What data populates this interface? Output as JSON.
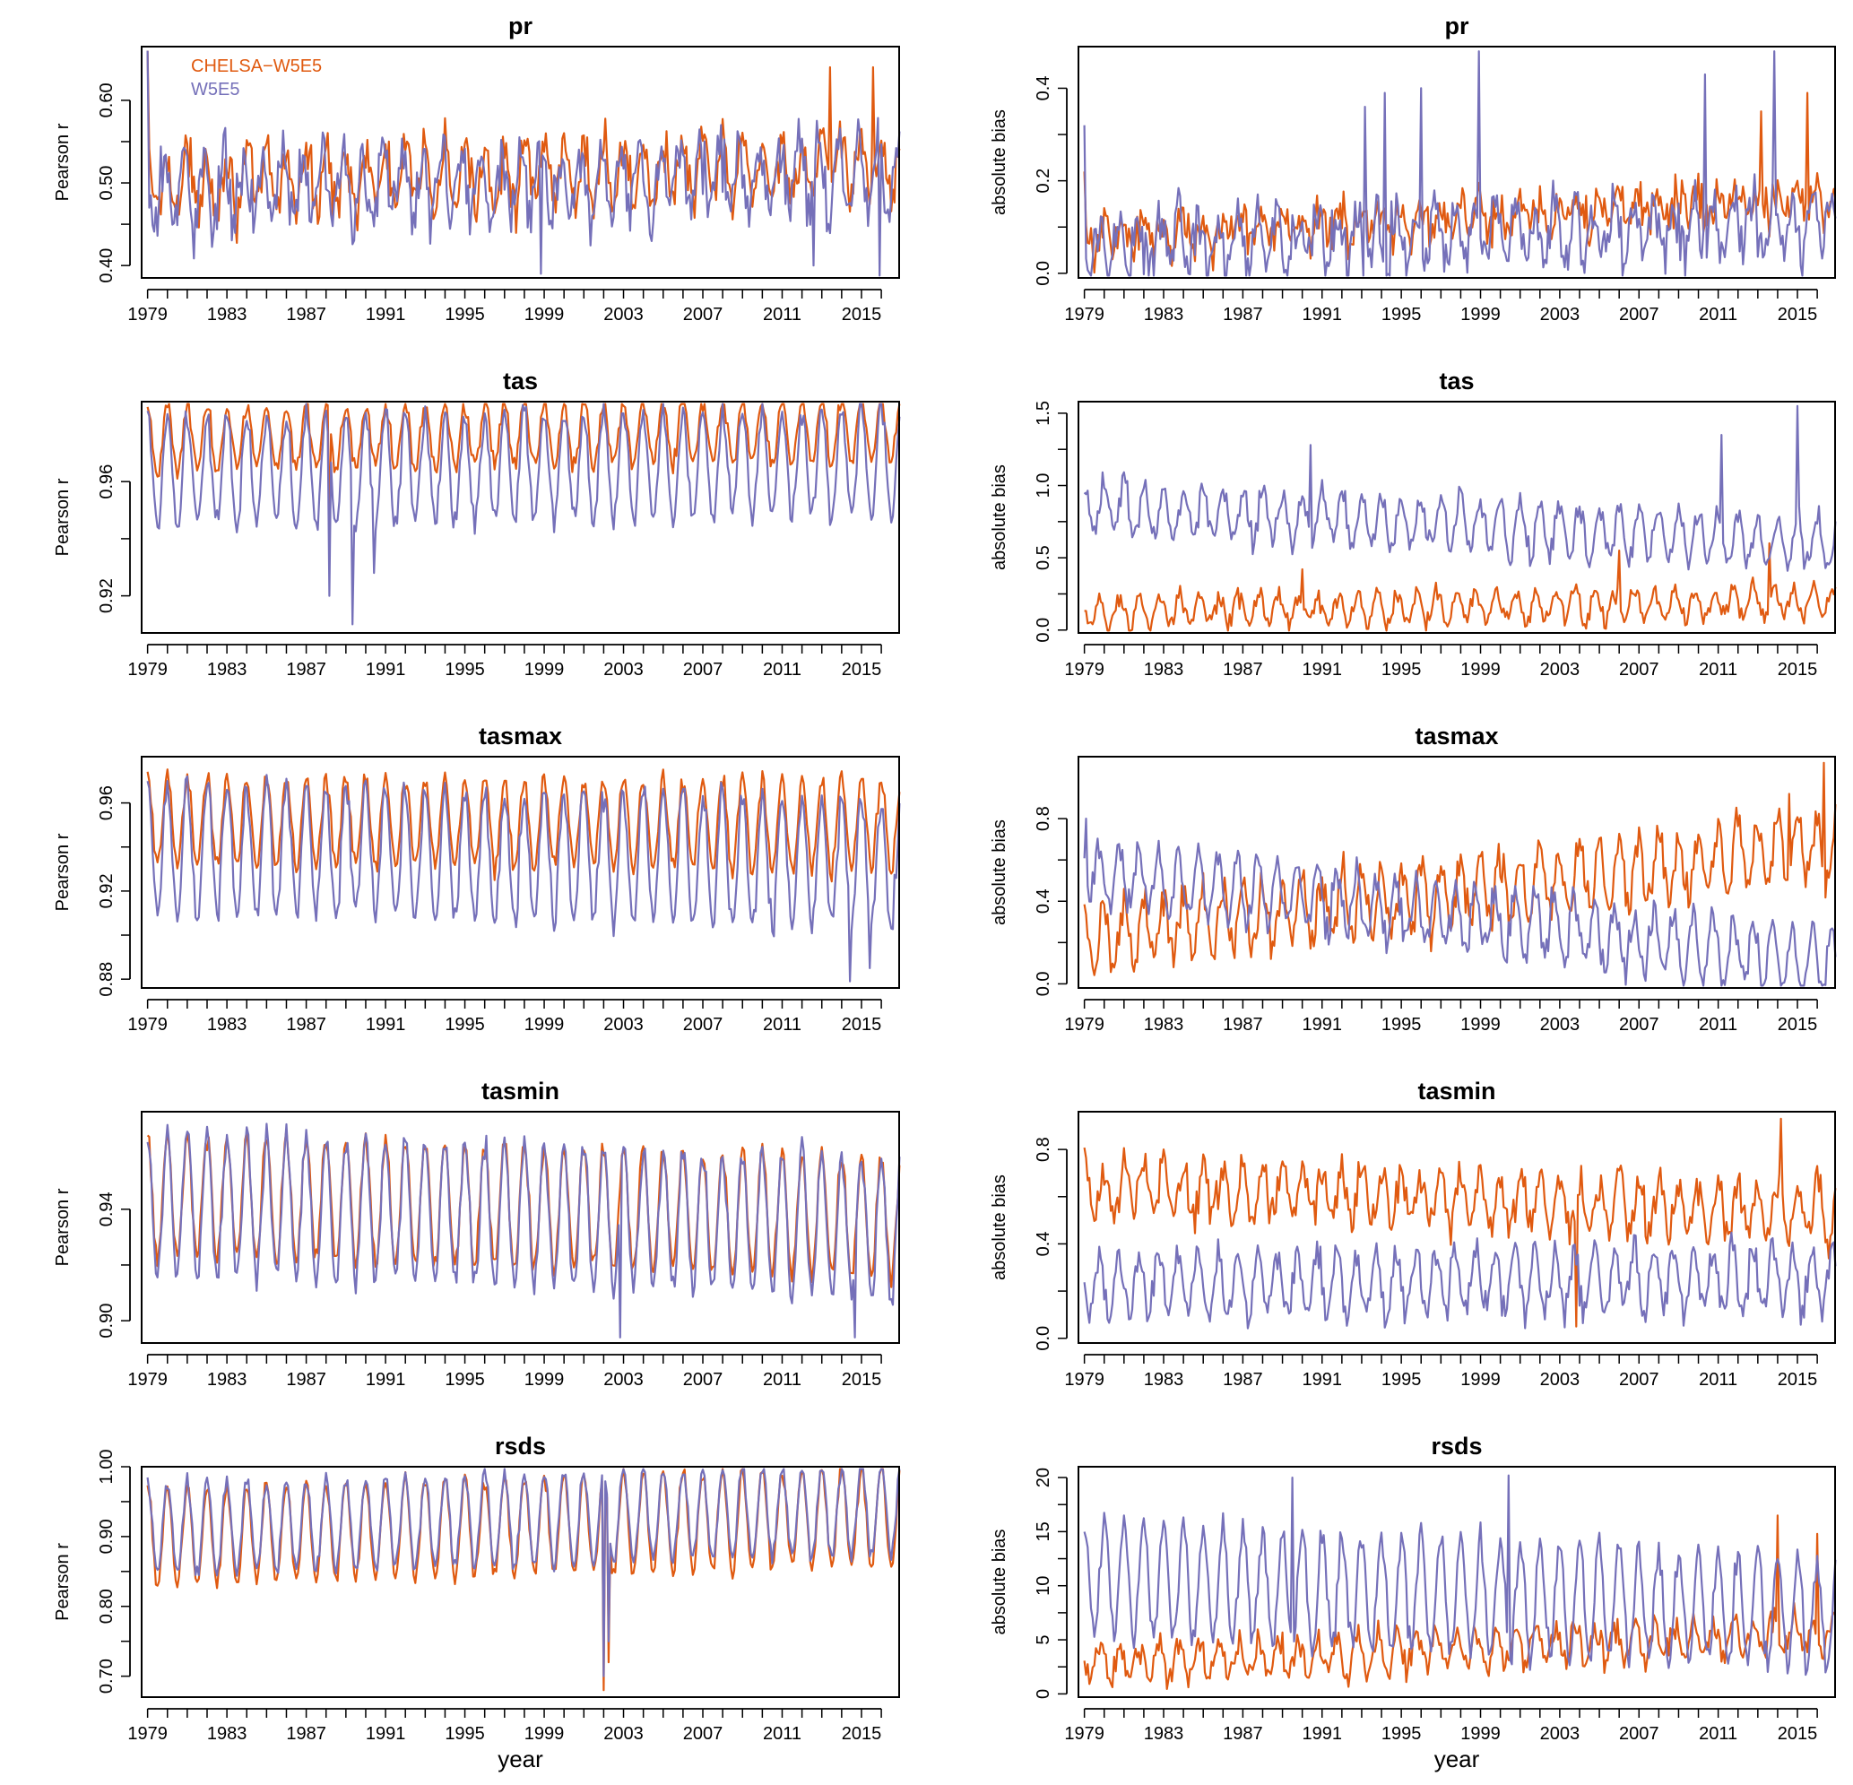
{
  "colors": {
    "chelsa": "#E05A10",
    "w5e5": "#7570B9",
    "axis": "#000000"
  },
  "legend": {
    "items": [
      {
        "label": "CHELSA−W5E5",
        "series": "chelsa"
      },
      {
        "label": "W5E5",
        "series": "w5e5"
      }
    ]
  },
  "xlabel": "year",
  "x_ticks": [
    "1979",
    "1983",
    "1987",
    "1991",
    "1995",
    "1999",
    "2003",
    "2007",
    "2011",
    "2015"
  ],
  "chart_data": [
    {
      "type": "line",
      "variable": "pr",
      "title": "pr",
      "ylabel": "Pearson r",
      "yticks": [
        "0.40",
        "0.50",
        "0.60"
      ],
      "ylim": [
        0.385,
        0.665
      ],
      "xlim": [
        1978.7,
        2016.9
      ],
      "series": [
        {
          "name": "CHELSA-W5E5",
          "color_key": "chelsa",
          "base": 0.5,
          "trend": 0.02,
          "amp": 0.035,
          "phase": 0.0,
          "noise": 0.025,
          "spikes": [
            [
              1979.0,
              0.66
            ],
            [
              2013.4,
              0.64
            ],
            [
              2015.6,
              0.64
            ]
          ]
        },
        {
          "name": "W5E5",
          "color_key": "w5e5",
          "base": 0.49,
          "trend": 0.02,
          "amp": 0.04,
          "phase": 0.3,
          "noise": 0.03,
          "spikes": [
            [
              1979.0,
              0.66
            ],
            [
              1998.8,
              0.39
            ],
            [
              2015.9,
              0.385
            ],
            [
              2012.6,
              0.4
            ]
          ]
        }
      ]
    },
    {
      "type": "line",
      "variable": "pr",
      "title": "pr",
      "ylabel": "absolute bias",
      "yticks": [
        "0.0",
        "0.2",
        "0.4"
      ],
      "ylim": [
        -0.01,
        0.49
      ],
      "xlim": [
        1978.7,
        2016.9
      ],
      "series": [
        {
          "name": "CHELSA-W5E5",
          "color_key": "chelsa",
          "base": 0.08,
          "trend": 0.08,
          "amp": 0.03,
          "phase": 0.1,
          "noise": 0.04,
          "spikes": [
            [
              1979.0,
              0.22
            ],
            [
              2015.5,
              0.39
            ],
            [
              2013.2,
              0.35
            ]
          ]
        },
        {
          "name": "W5E5",
          "color_key": "w5e5",
          "base": 0.06,
          "trend": 0.05,
          "amp": 0.06,
          "phase": 0.5,
          "noise": 0.05,
          "spikes": [
            [
              1979.0,
              0.32
            ],
            [
              1993.2,
              0.36
            ],
            [
              1994.2,
              0.39
            ],
            [
              1996.0,
              0.4
            ],
            [
              1998.9,
              0.48
            ],
            [
              2010.3,
              0.43
            ],
            [
              2013.8,
              0.48
            ]
          ]
        }
      ]
    },
    {
      "type": "line",
      "variable": "tas",
      "title": "tas",
      "ylabel": "Pearson r",
      "yticks": [
        "0.92",
        "0.96"
      ],
      "ylim": [
        0.907,
        0.988
      ],
      "xlim": [
        1978.7,
        2016.9
      ],
      "series": [
        {
          "name": "CHELSA-W5E5",
          "color_key": "chelsa",
          "base": 0.975,
          "trend": 0.003,
          "amp": 0.011,
          "phase": 0.0,
          "noise": 0.003,
          "spikes": [
            [
              1988.2,
              0.94
            ]
          ]
        },
        {
          "name": "W5E5",
          "color_key": "w5e5",
          "base": 0.963,
          "trend": 0.004,
          "amp": 0.019,
          "phase": 0.0,
          "noise": 0.004,
          "spikes": [
            [
              1988.2,
              0.92
            ],
            [
              1989.3,
              0.91
            ],
            [
              1990.4,
              0.928
            ]
          ]
        }
      ]
    },
    {
      "type": "line",
      "variable": "tas",
      "title": "tas",
      "ylabel": "absolute bias",
      "yticks": [
        "0.0",
        "0.5",
        "1.0",
        "1.5"
      ],
      "ylim": [
        -0.02,
        1.58
      ],
      "xlim": [
        1978.7,
        2016.9
      ],
      "series": [
        {
          "name": "CHELSA-W5E5",
          "color_key": "chelsa",
          "base": 0.12,
          "trend": 0.08,
          "amp": 0.1,
          "phase": 0.4,
          "noise": 0.06,
          "spikes": [
            [
              1990.0,
              0.42
            ],
            [
              2006.0,
              0.55
            ],
            [
              2013.6,
              0.6
            ]
          ]
        },
        {
          "name": "W5E5",
          "color_key": "w5e5",
          "base": 0.85,
          "trend": -0.25,
          "amp": 0.17,
          "phase": 0.0,
          "noise": 0.08,
          "spikes": [
            [
              1990.4,
              1.28
            ],
            [
              2011.2,
              1.35
            ],
            [
              2015.0,
              1.55
            ]
          ]
        }
      ]
    },
    {
      "type": "line",
      "variable": "tasmax",
      "title": "tasmax",
      "ylabel": "Pearson r",
      "yticks": [
        "0.88",
        "0.92",
        "0.96"
      ],
      "ylim": [
        0.876,
        0.981
      ],
      "xlim": [
        1978.7,
        2016.9
      ],
      "series": [
        {
          "name": "CHELSA-W5E5",
          "color_key": "chelsa",
          "base": 0.952,
          "trend": -0.002,
          "amp": 0.02,
          "phase": 0.0,
          "noise": 0.004,
          "spikes": []
        },
        {
          "name": "W5E5",
          "color_key": "w5e5",
          "base": 0.94,
          "trend": -0.008,
          "amp": 0.03,
          "phase": 0.0,
          "noise": 0.006,
          "spikes": [
            [
              2014.4,
              0.879
            ],
            [
              2015.4,
              0.885
            ]
          ]
        }
      ]
    },
    {
      "type": "line",
      "variable": "tasmax",
      "title": "tasmax",
      "ylabel": "absolute bias",
      "yticks": [
        "0.0",
        "0.4",
        "0.8"
      ],
      "ylim": [
        -0.02,
        1.1
      ],
      "xlim": [
        1978.7,
        2016.9
      ],
      "series": [
        {
          "name": "CHELSA-W5E5",
          "color_key": "chelsa",
          "base": 0.22,
          "trend": 0.45,
          "amp": 0.15,
          "phase": 0.0,
          "noise": 0.08,
          "spikes": [
            [
              2016.3,
              1.07
            ],
            [
              2014.6,
              0.92
            ]
          ]
        },
        {
          "name": "W5E5",
          "color_key": "w5e5",
          "base": 0.55,
          "trend": -0.45,
          "amp": 0.15,
          "phase": 0.5,
          "noise": 0.07,
          "spikes": [
            [
              1979.1,
              0.8
            ]
          ]
        }
      ]
    },
    {
      "type": "line",
      "variable": "tasmin",
      "title": "tasmin",
      "ylabel": "Pearson r",
      "yticks": [
        "0.90",
        "0.94"
      ],
      "ylim": [
        0.892,
        0.975
      ],
      "xlim": [
        1978.7,
        2016.9
      ],
      "series": [
        {
          "name": "CHELSA-W5E5",
          "color_key": "chelsa",
          "base": 0.945,
          "trend": -0.008,
          "amp": 0.022,
          "phase": 0.0,
          "noise": 0.003,
          "spikes": []
        },
        {
          "name": "W5E5",
          "color_key": "w5e5",
          "base": 0.942,
          "trend": -0.008,
          "amp": 0.025,
          "phase": 0.0,
          "noise": 0.004,
          "spikes": [
            [
              2002.8,
              0.894
            ],
            [
              2014.7,
              0.894
            ]
          ]
        }
      ]
    },
    {
      "type": "line",
      "variable": "tasmin",
      "title": "tasmin",
      "ylabel": "absolute bias",
      "yticks": [
        "0.0",
        "0.4",
        "0.8"
      ],
      "ylim": [
        -0.02,
        0.96
      ],
      "xlim": [
        1978.7,
        2016.9
      ],
      "series": [
        {
          "name": "CHELSA-W5E5",
          "color_key": "chelsa",
          "base": 0.65,
          "trend": -0.12,
          "amp": 0.11,
          "phase": 0.0,
          "noise": 0.07,
          "spikes": [
            [
              2014.2,
              0.93
            ],
            [
              2003.8,
              0.05
            ]
          ]
        },
        {
          "name": "W5E5",
          "color_key": "w5e5",
          "base": 0.23,
          "trend": 0.02,
          "amp": 0.13,
          "phase": 0.5,
          "noise": 0.06,
          "spikes": []
        }
      ]
    },
    {
      "type": "line",
      "variable": "rsds",
      "title": "rsds",
      "ylabel": "Pearson r",
      "yticks": [
        "0.70",
        "0.80",
        "0.90",
        "1.00"
      ],
      "ylim": [
        0.67,
        1.0
      ],
      "xlim": [
        1978.7,
        2016.9
      ],
      "series": [
        {
          "name": "CHELSA-W5E5",
          "color_key": "chelsa",
          "base": 0.9,
          "trend": 0.03,
          "amp": 0.07,
          "phase": 0.0,
          "noise": 0.01,
          "spikes": [
            [
              2002.0,
              0.68
            ],
            [
              2002.25,
              0.72
            ]
          ]
        },
        {
          "name": "W5E5",
          "color_key": "w5e5",
          "base": 0.91,
          "trend": 0.03,
          "amp": 0.065,
          "phase": 0.0,
          "noise": 0.01,
          "spikes": [
            [
              2002.0,
              0.7
            ],
            [
              2002.25,
              0.75
            ]
          ]
        }
      ]
    },
    {
      "type": "line",
      "variable": "rsds",
      "title": "rsds",
      "ylabel": "absolute bias",
      "yticks": [
        "0",
        "5",
        "10",
        "15",
        "20"
      ],
      "ylim": [
        -0.3,
        21.0
      ],
      "xlim": [
        1978.7,
        2016.9
      ],
      "series": [
        {
          "name": "CHELSA-W5E5",
          "color_key": "chelsa",
          "base": 2.6,
          "trend": 3.0,
          "amp": 1.6,
          "phase": 0.4,
          "noise": 1.1,
          "spikes": [
            [
              2014.0,
              16.5
            ],
            [
              2016.0,
              14.8
            ]
          ]
        },
        {
          "name": "W5E5",
          "color_key": "w5e5",
          "base": 10.5,
          "trend": -3.0,
          "amp": 5.2,
          "phase": 0.0,
          "noise": 1.2,
          "spikes": [
            [
              2000.4,
              20.2
            ],
            [
              1989.5,
              20.0
            ]
          ]
        }
      ]
    }
  ]
}
